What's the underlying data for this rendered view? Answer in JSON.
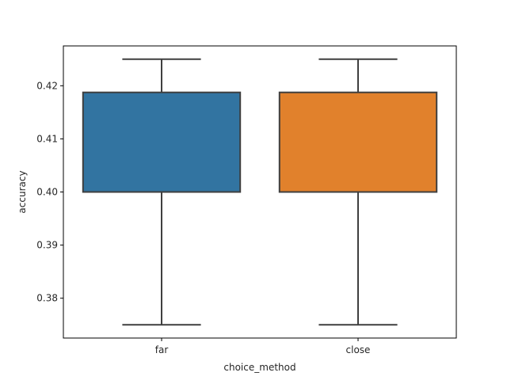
{
  "chart_data": {
    "type": "box",
    "title": "",
    "xlabel": "choice_method",
    "ylabel": "accuracy",
    "ylim": [
      0.3725,
      0.4275
    ],
    "yticks": [
      0.38,
      0.39,
      0.4,
      0.41,
      0.42
    ],
    "ytick_labels": [
      "0.38",
      "0.39",
      "0.40",
      "0.41",
      "0.42"
    ],
    "categories": [
      "far",
      "close"
    ],
    "boxes": [
      {
        "category": "far",
        "whisker_low": 0.375,
        "q1": 0.4,
        "median": 0.4,
        "q3": 0.41875,
        "whisker_high": 0.425,
        "color": "#3274a1"
      },
      {
        "category": "close",
        "whisker_low": 0.375,
        "q1": 0.4,
        "median": 0.4,
        "q3": 0.41875,
        "whisker_high": 0.425,
        "color": "#e1812c"
      }
    ],
    "grid": false,
    "legend": "none"
  }
}
